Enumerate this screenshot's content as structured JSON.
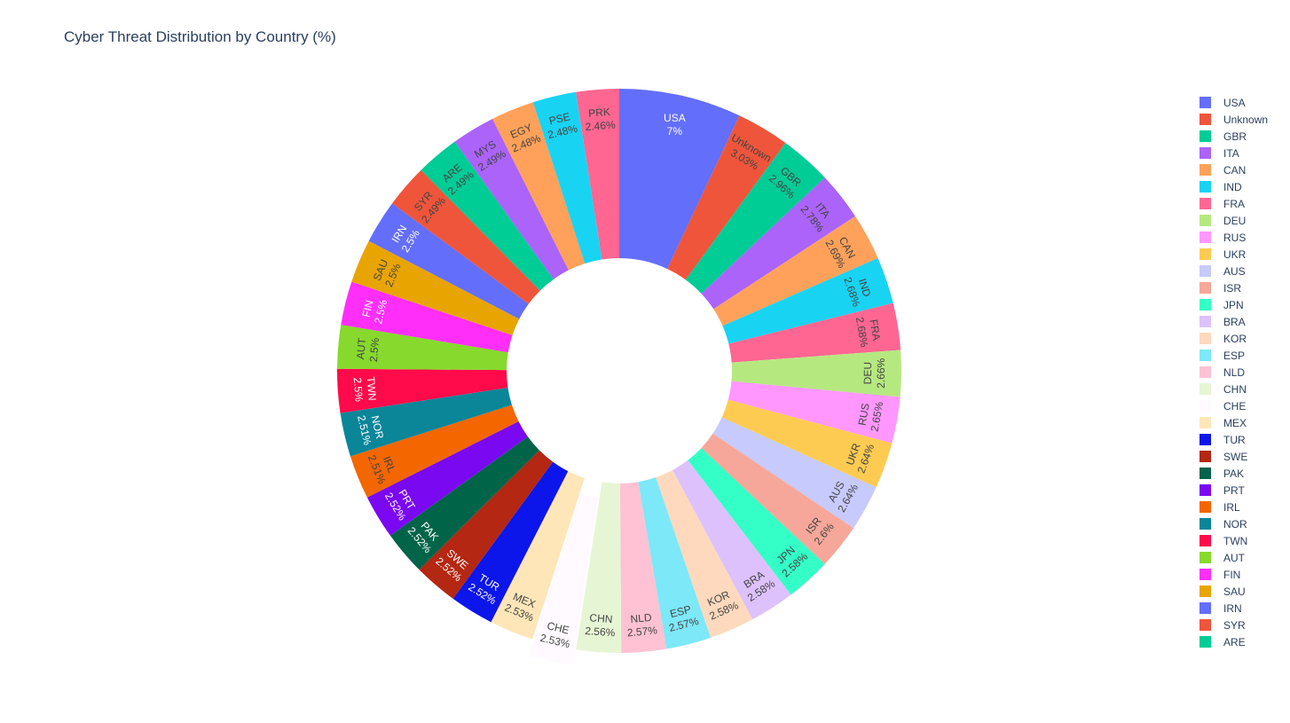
{
  "chart_data": {
    "type": "pie",
    "title": "Cyber Threat Distribution by Country (%)",
    "hole": true,
    "legend_position": "right",
    "slices": [
      {
        "label": "USA",
        "value": 7,
        "text": "7%",
        "color": "#636efa",
        "text_color": "#ffffff"
      },
      {
        "label": "Unknown",
        "value": 3.03,
        "text": "3.03%",
        "color": "#EF553B",
        "text_color": "#444444"
      },
      {
        "label": "GBR",
        "value": 2.96,
        "text": "2.96%",
        "color": "#00cc96",
        "text_color": "#444444"
      },
      {
        "label": "ITA",
        "value": 2.78,
        "text": "2.78%",
        "color": "#ab63fa",
        "text_color": "#444444"
      },
      {
        "label": "CAN",
        "value": 2.69,
        "text": "2.69%",
        "color": "#FFA15A",
        "text_color": "#444444"
      },
      {
        "label": "IND",
        "value": 2.68,
        "text": "2.68%",
        "color": "#19d3f3",
        "text_color": "#444444"
      },
      {
        "label": "FRA",
        "value": 2.68,
        "text": "2.68%",
        "color": "#FF6692",
        "text_color": "#444444"
      },
      {
        "label": "DEU",
        "value": 2.66,
        "text": "2.66%",
        "color": "#B6E880",
        "text_color": "#444444"
      },
      {
        "label": "RUS",
        "value": 2.65,
        "text": "2.65%",
        "color": "#FF97FF",
        "text_color": "#444444"
      },
      {
        "label": "UKR",
        "value": 2.64,
        "text": "2.64%",
        "color": "#FECB52",
        "text_color": "#444444"
      },
      {
        "label": "AUS",
        "value": 2.64,
        "text": "2.64%",
        "color": "#c6cafd",
        "text_color": "#444444"
      },
      {
        "label": "ISR",
        "value": 2.6,
        "text": "2.6%",
        "color": "#f7a799",
        "text_color": "#444444"
      },
      {
        "label": "JPN",
        "value": 2.58,
        "text": "2.58%",
        "color": "#33ffc7",
        "text_color": "#444444"
      },
      {
        "label": "BRA",
        "value": 2.58,
        "text": "2.58%",
        "color": "#ddc1fc",
        "text_color": "#444444"
      },
      {
        "label": "KOR",
        "value": 2.58,
        "text": "2.58%",
        "color": "#fed9bd",
        "text_color": "#444444"
      },
      {
        "label": "ESP",
        "value": 2.57,
        "text": "2.57%",
        "color": "#7de8f7",
        "text_color": "#444444"
      },
      {
        "label": "NLD",
        "value": 2.57,
        "text": "2.57%",
        "color": "#ffc2d4",
        "text_color": "#444444"
      },
      {
        "label": "CHN",
        "value": 2.56,
        "text": "2.56%",
        "color": "#e6f6d4",
        "text_color": "#444444"
      },
      {
        "label": "CHE",
        "value": 2.53,
        "text": "2.53%",
        "color": "#fffaff",
        "text_color": "#444444"
      },
      {
        "label": "MEX",
        "value": 2.53,
        "text": "2.53%",
        "color": "#ffe6b8",
        "text_color": "#444444"
      },
      {
        "label": "TUR",
        "value": 2.52,
        "text": "2.52%",
        "color": "#0D16EA",
        "text_color": "#ffffff"
      },
      {
        "label": "SWE",
        "value": 2.52,
        "text": "2.52%",
        "color": "#B42712",
        "text_color": "#ffffff"
      },
      {
        "label": "PAK",
        "value": 2.52,
        "text": "2.52%",
        "color": "#006449",
        "text_color": "#ffffff"
      },
      {
        "label": "PRT",
        "value": 2.52,
        "text": "2.52%",
        "color": "#7A08F0",
        "text_color": "#ffffff"
      },
      {
        "label": "IRL",
        "value": 2.51,
        "text": "2.51%",
        "color": "#F36600",
        "text_color": "#444444"
      },
      {
        "label": "NOR",
        "value": 2.51,
        "text": "2.51%",
        "color": "#0B8699",
        "text_color": "#ffffff"
      },
      {
        "label": "TWN",
        "value": 2.5,
        "text": "2.5%",
        "color": "#FF0A4A",
        "text_color": "#ffffff"
      },
      {
        "label": "AUT",
        "value": 2.5,
        "text": "2.5%",
        "color": "#87D92D",
        "text_color": "#444444"
      },
      {
        "label": "FIN",
        "value": 2.5,
        "text": "2.5%",
        "color": "#FF2EF9",
        "text_color": "#ffffff"
      },
      {
        "label": "SAU",
        "value": 2.5,
        "text": "2.5%",
        "color": "#E8A401",
        "text_color": "#444444"
      },
      {
        "label": "IRN",
        "value": 2.5,
        "text": "2.5%",
        "color": "#636efa",
        "text_color": "#ffffff"
      },
      {
        "label": "SYR",
        "value": 2.49,
        "text": "2.49%",
        "color": "#EF553B",
        "text_color": "#444444"
      },
      {
        "label": "ARE",
        "value": 2.49,
        "text": "2.49%",
        "color": "#00cc96",
        "text_color": "#444444"
      },
      {
        "label": "MYS",
        "value": 2.49,
        "text": "2.49%",
        "color": "#ab63fa",
        "text_color": "#444444"
      },
      {
        "label": "EGY",
        "value": 2.48,
        "text": "2.48%",
        "color": "#FFA15A",
        "text_color": "#444444"
      },
      {
        "label": "PSE",
        "value": 2.48,
        "text": "2.48%",
        "color": "#19d3f3",
        "text_color": "#444444"
      },
      {
        "label": "PRK",
        "value": 2.46,
        "text": "2.46%",
        "color": "#FF6692",
        "text_color": "#444444"
      }
    ],
    "pulled": [
      "CHE"
    ],
    "legend_labels": [
      "USA",
      "Unknown",
      "GBR",
      "ITA",
      "CAN",
      "IND",
      "FRA",
      "DEU",
      "RUS",
      "UKR",
      "AUS",
      "ISR",
      "JPN",
      "BRA",
      "KOR",
      "ESP",
      "NLD",
      "CHN",
      "CHE",
      "MEX",
      "TUR",
      "SWE",
      "PAK",
      "PRT",
      "IRL",
      "NOR",
      "TWN",
      "AUT",
      "FIN",
      "SAU",
      "IRN",
      "SYR",
      "ARE"
    ]
  }
}
